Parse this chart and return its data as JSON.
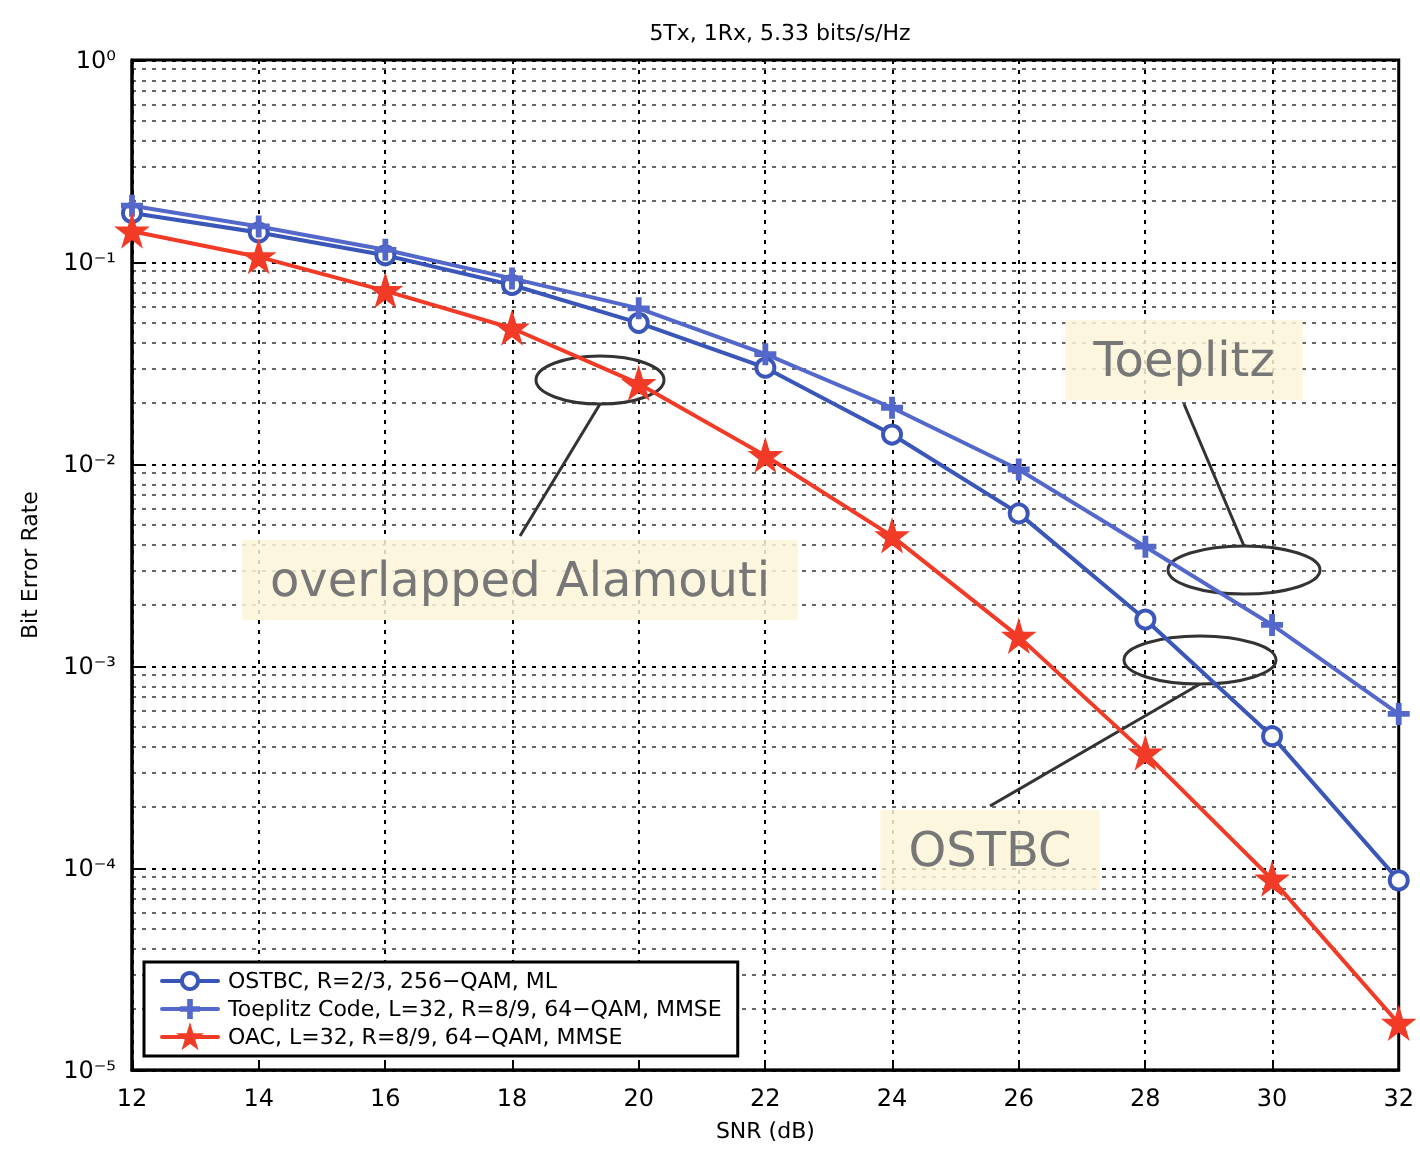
{
  "chart_data": {
    "type": "line",
    "title": "5Tx, 1Rx, 5.33 bits/s/Hz",
    "xlabel": "SNR (dB)",
    "ylabel": "Bit Error Rate",
    "x": [
      12,
      14,
      16,
      18,
      20,
      22,
      24,
      26,
      28,
      30,
      32
    ],
    "series": [
      {
        "name": "OSTBC, R=2/3, 256−QAM, ML",
        "color": "#3a56b8",
        "marker": "circle",
        "values": [
          0.175,
          0.14,
          0.108,
          0.077,
          0.05,
          0.03,
          0.014,
          0.0057,
          0.0017,
          0.00045,
          8.7e-05
        ]
      },
      {
        "name": "Toeplitz Code, L=32, R=8/9, 64−QAM, MMSE",
        "color": "#5468cc",
        "marker": "cross",
        "values": [
          0.19,
          0.15,
          0.115,
          0.083,
          0.059,
          0.035,
          0.019,
          0.0094,
          0.0039,
          0.0016,
          0.00058
        ]
      },
      {
        "name": "OAC, L=32, R=8/9, 64−QAM, MMSE",
        "color": "#f23b26",
        "marker": "star",
        "values": [
          0.142,
          0.106,
          0.072,
          0.047,
          0.025,
          0.011,
          0.0044,
          0.0014,
          0.00037,
          8.8e-05,
          1.7e-05
        ]
      }
    ],
    "xlim": [
      12,
      32
    ],
    "xticks": [
      12,
      14,
      16,
      18,
      20,
      22,
      24,
      26,
      28,
      30,
      32
    ],
    "ylim": [
      1e-05,
      1
    ],
    "yticks": [
      {
        "value": 1e-05,
        "label": "10⁻⁵"
      },
      {
        "value": 0.0001,
        "label": "10⁻⁴"
      },
      {
        "value": 0.001,
        "label": "10⁻³"
      },
      {
        "value": 0.01,
        "label": "10⁻²"
      },
      {
        "value": 0.1,
        "label": "10⁻¹"
      },
      {
        "value": 1,
        "label": "10⁰"
      }
    ],
    "log": "y",
    "grid": true,
    "legend": "bottom left",
    "line_style": "solid",
    "annotations": [
      "Toeplitz",
      "overlapped Alamouti",
      "OSTBC"
    ]
  }
}
